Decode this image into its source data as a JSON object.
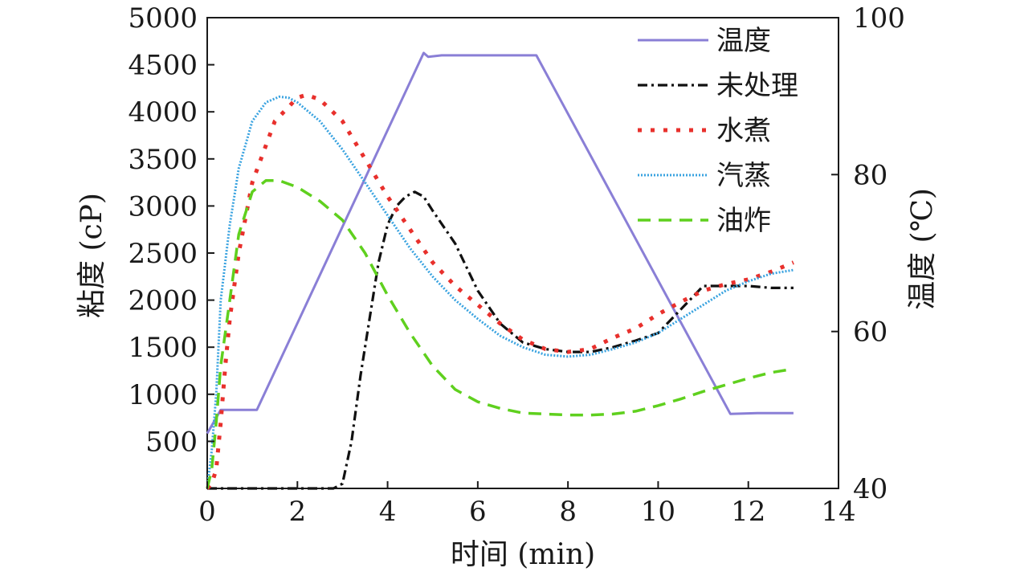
{
  "chart_data": {
    "type": "line",
    "title": "",
    "xlabel": "时间 (min)",
    "ylabel": "粘度 (cP)",
    "y2label": "温度 (℃)",
    "xlim": [
      0,
      14
    ],
    "ylim": [
      0,
      5000
    ],
    "y2lim": [
      40,
      100
    ],
    "x_ticks": [
      "0",
      "2",
      "4",
      "6",
      "8",
      "10",
      "12",
      "14"
    ],
    "y_ticks": [
      "500",
      "1000",
      "1500",
      "2000",
      "2500",
      "3000",
      "3500",
      "4000",
      "4500",
      "5000"
    ],
    "y2_ticks": [
      "40",
      "60",
      "80",
      "100"
    ],
    "grid": false,
    "legend_position": "top-right",
    "series": [
      {
        "name": "温度",
        "axis": "right",
        "color": "#8a7fd6",
        "dash": "solid",
        "x": [
          0,
          0.3,
          1.1,
          4.8,
          4.9,
          5.2,
          7.3,
          11.6,
          12.2,
          13.0
        ],
        "y": [
          47,
          50,
          50,
          95.5,
          95,
          95.2,
          95.2,
          49.5,
          49.6,
          49.6
        ]
      },
      {
        "name": "未处理",
        "axis": "left",
        "color": "#111111",
        "dash": "dashdot",
        "x": [
          0,
          0.2,
          0.5,
          1,
          2,
          2.8,
          3.0,
          3.2,
          3.4,
          3.6,
          3.8,
          4.0,
          4.2,
          4.4,
          4.6,
          4.8,
          5.0,
          5.5,
          6.0,
          6.5,
          7.0,
          7.5,
          8.0,
          8.5,
          9.0,
          9.5,
          10.0,
          10.5,
          11.0,
          11.5,
          12.0,
          12.5,
          13.0
        ],
        "y": [
          0,
          0,
          0,
          0,
          0,
          0,
          50,
          500,
          1200,
          1800,
          2400,
          2800,
          3000,
          3100,
          3150,
          3100,
          2950,
          2600,
          2100,
          1750,
          1550,
          1480,
          1450,
          1450,
          1500,
          1570,
          1650,
          1900,
          2150,
          2150,
          2150,
          2130,
          2130
        ]
      },
      {
        "name": "水煮",
        "axis": "left",
        "color": "#e8302c",
        "dash": "dotted-square",
        "x": [
          0,
          0.1,
          0.2,
          0.3,
          0.4,
          0.5,
          0.7,
          1.0,
          1.5,
          2.0,
          2.2,
          2.5,
          3.0,
          3.5,
          4.0,
          4.5,
          5.0,
          5.5,
          6.0,
          6.5,
          7.0,
          7.5,
          8.0,
          8.5,
          9.0,
          9.5,
          10.0,
          10.5,
          11.0,
          11.5,
          12.0,
          12.5,
          13.0
        ],
        "y": [
          0,
          50,
          200,
          700,
          1300,
          1800,
          2500,
          3250,
          3900,
          4150,
          4180,
          4130,
          3900,
          3500,
          3100,
          2750,
          2400,
          2150,
          1950,
          1750,
          1580,
          1480,
          1450,
          1480,
          1600,
          1700,
          1850,
          1980,
          2100,
          2170,
          2220,
          2300,
          2400
        ]
      },
      {
        "name": "汽蒸",
        "axis": "left",
        "color": "#3aa3e0",
        "dash": "dotted",
        "x": [
          0,
          0.1,
          0.2,
          0.3,
          0.5,
          0.7,
          1.0,
          1.3,
          1.6,
          1.8,
          2.0,
          2.5,
          3.0,
          3.5,
          4.0,
          4.5,
          5.0,
          5.5,
          6.0,
          6.5,
          7.0,
          7.5,
          8.0,
          8.5,
          9.0,
          9.5,
          10.0,
          10.5,
          11.0,
          11.5,
          12.0,
          12.5,
          13.0
        ],
        "y": [
          0,
          400,
          1000,
          2000,
          2800,
          3400,
          3900,
          4100,
          4160,
          4150,
          4100,
          3900,
          3600,
          3250,
          2900,
          2550,
          2250,
          2000,
          1800,
          1620,
          1500,
          1420,
          1400,
          1420,
          1480,
          1550,
          1650,
          1800,
          1950,
          2100,
          2200,
          2280,
          2320
        ]
      },
      {
        "name": "油炸",
        "axis": "left",
        "color": "#5fd01e",
        "dash": "dashed",
        "x": [
          0,
          0.1,
          0.2,
          0.3,
          0.5,
          0.7,
          1.0,
          1.3,
          1.6,
          2.0,
          2.5,
          3.0,
          3.5,
          4.0,
          4.5,
          5.0,
          5.5,
          6.0,
          6.5,
          7.0,
          7.5,
          8.0,
          8.5,
          9.0,
          9.5,
          10.0,
          10.5,
          11.0,
          11.5,
          12.0,
          12.5,
          13.0
        ],
        "y": [
          0,
          200,
          700,
          1300,
          2000,
          2700,
          3150,
          3270,
          3270,
          3200,
          3050,
          2850,
          2500,
          2050,
          1650,
          1300,
          1050,
          920,
          850,
          800,
          790,
          780,
          780,
          790,
          820,
          880,
          950,
          1030,
          1100,
          1170,
          1230,
          1270
        ]
      }
    ]
  }
}
